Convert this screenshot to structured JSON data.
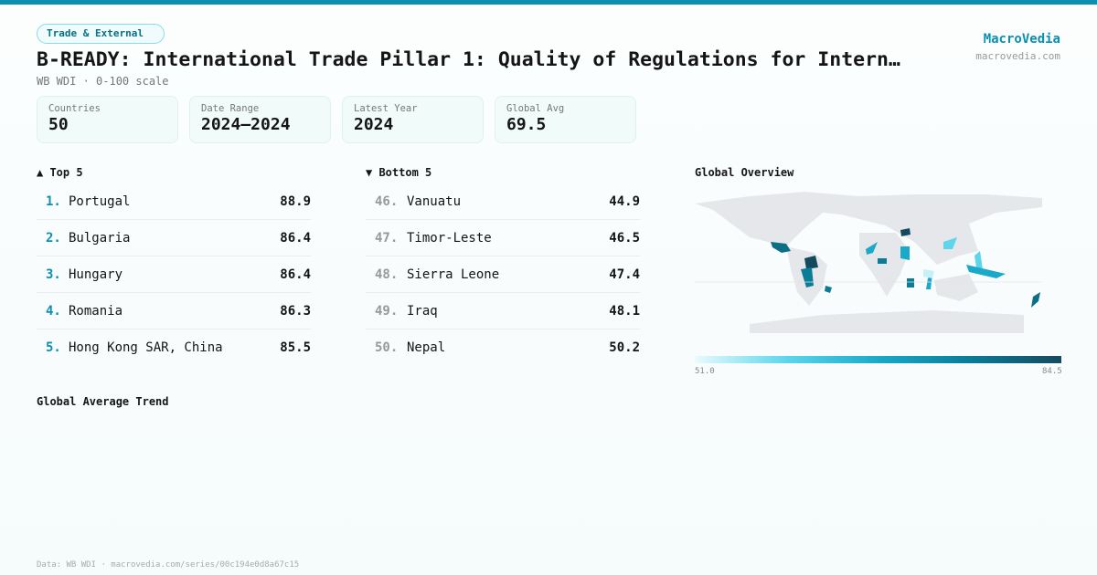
{
  "badge": "Trade & External",
  "title": "B-READY: International Trade Pillar 1: Quality of Regulations for Intern…",
  "subtitle": "WB WDI · 0-100 scale",
  "brand": {
    "name": "MacroVedia",
    "url": "macrovedia.com"
  },
  "stats": [
    {
      "label": "Countries",
      "value": "50"
    },
    {
      "label": "Date Range",
      "value": "2024–2024"
    },
    {
      "label": "Latest Year",
      "value": "2024"
    },
    {
      "label": "Global Avg",
      "value": "69.5"
    }
  ],
  "top": {
    "title": "▲ Top 5",
    "items": [
      {
        "rank": "1.",
        "name": "Portugal",
        "value": "88.9"
      },
      {
        "rank": "2.",
        "name": "Bulgaria",
        "value": "86.4"
      },
      {
        "rank": "3.",
        "name": "Hungary",
        "value": "86.4"
      },
      {
        "rank": "4.",
        "name": "Romania",
        "value": "86.3"
      },
      {
        "rank": "5.",
        "name": "Hong Kong SAR, China",
        "value": "85.5"
      }
    ]
  },
  "bottom": {
    "title": "▼ Bottom 5",
    "items": [
      {
        "rank": "46.",
        "name": "Vanuatu",
        "value": "44.9"
      },
      {
        "rank": "47.",
        "name": "Timor-Leste",
        "value": "46.5"
      },
      {
        "rank": "48.",
        "name": "Sierra Leone",
        "value": "47.4"
      },
      {
        "rank": "49.",
        "name": "Iraq",
        "value": "48.1"
      },
      {
        "rank": "50.",
        "name": "Nepal",
        "value": "50.2"
      }
    ]
  },
  "map": {
    "title": "Global Overview",
    "legend_min": "51.0",
    "legend_max": "84.5",
    "colors": {
      "land": "#e6e7ea",
      "low": "#eafafd",
      "high": "#154a5e"
    }
  },
  "trend": {
    "title": "Global Average Trend"
  },
  "footer": "Data: WB WDI · macrovedia.com/series/00c194e0d8a67c15"
}
